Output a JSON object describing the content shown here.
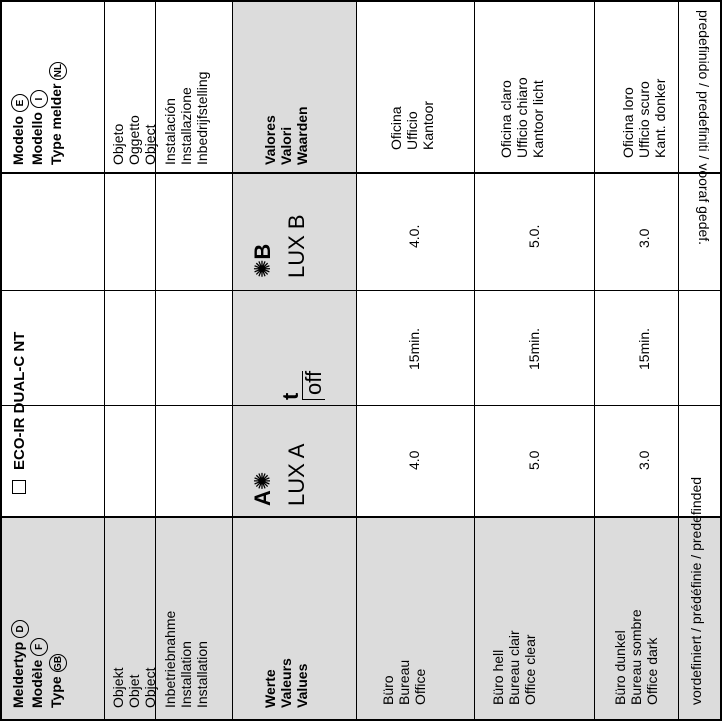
{
  "header": {
    "left": {
      "line1": "Meldertyp",
      "line2": "Modèle",
      "line3": "Type",
      "circle1": "D",
      "circle2": "F",
      "circle3": "GB"
    },
    "right": {
      "line1": "Modelo",
      "line2": "Modello",
      "line3": "Type melder",
      "circle1": "E",
      "circle2": "I",
      "circle3": "NL"
    },
    "product": "ECO-IR DUAL-C NT"
  },
  "object_left": [
    "Objekt",
    "Objet",
    "Object"
  ],
  "object_right": [
    "Objeto",
    "Oggetto",
    "Object"
  ],
  "install_left": [
    "Inbetriebnahme",
    "Installation",
    "Installation"
  ],
  "install_right": [
    "Instalación",
    "Installazione",
    "Inbedrijfstelling"
  ],
  "values_left": [
    "Werte",
    "Valeurs",
    "Values"
  ],
  "values_right": [
    "Valores",
    "Valori",
    "Waarden"
  ],
  "columns": {
    "lux_a": "LUX A",
    "lux_a_letter": "A",
    "toff_t": "t",
    "toff_sub": "off",
    "lux_b": "LUX B",
    "lux_b_letter": "B"
  },
  "rows": [
    {
      "left": [
        "Büro",
        "Bureau",
        "Office"
      ],
      "lux_a": "4.0",
      "toff": "15min.",
      "lux_b": "4.0.",
      "right": [
        "Oficina",
        "Ufficio",
        "Kantoor"
      ]
    },
    {
      "left": [
        "Büro hell",
        "Bureau clair",
        "Office clear"
      ],
      "lux_a": "5.0",
      "toff": "15min.",
      "lux_b": "5.0.",
      "right": [
        "Oficina claro",
        "Ufficio chiaro",
        "Kantoor licht"
      ]
    },
    {
      "left": [
        "Büro dunkel",
        "Bureau sombre",
        "Office dark"
      ],
      "lux_a": "3.0",
      "toff": "15min.",
      "lux_b": "3.0",
      "right": [
        "Oficina loro",
        "Ufficio scuro",
        "Kant. donker"
      ]
    }
  ],
  "footer_left": "vordefiniert / prédéfinie / predefinded",
  "footer_right": "predefinido / predefiniti / vooraf gedef."
}
